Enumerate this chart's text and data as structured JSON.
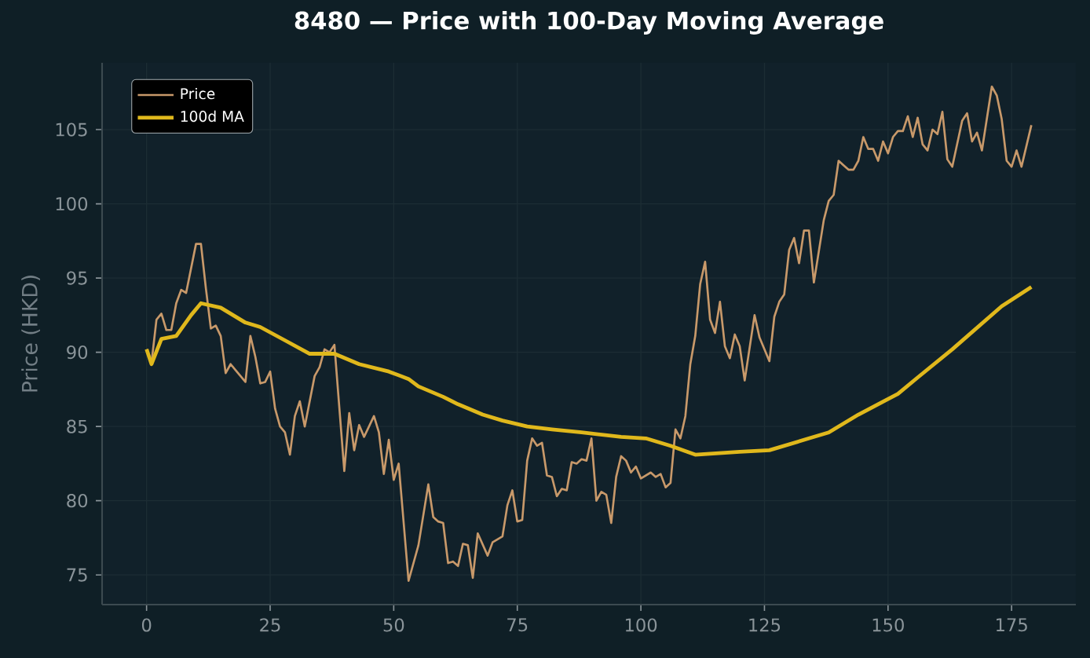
{
  "chart_data": {
    "type": "line",
    "title": "8480 — Price with 100-Day Moving Average",
    "ylabel": "Price (HKD)",
    "xlim": [
      -9,
      188
    ],
    "ylim": [
      73,
      109.5
    ],
    "xticks": [
      0,
      25,
      50,
      75,
      100,
      125,
      150,
      175
    ],
    "yticks": [
      75,
      80,
      85,
      90,
      95,
      100,
      105
    ],
    "grid": true,
    "legend": "top left",
    "series": [
      {
        "name": "Price",
        "color": "#c8996a",
        "x": [
          0,
          1,
          2,
          3,
          4,
          5,
          6,
          7,
          8,
          10,
          11,
          12,
          13,
          14,
          15,
          16,
          17,
          18,
          20,
          21,
          22,
          23,
          24,
          25,
          26,
          27,
          28,
          29,
          30,
          31,
          32,
          34,
          35,
          36,
          37,
          38,
          40,
          41,
          42,
          43,
          44,
          46,
          47,
          48,
          49,
          50,
          51,
          53,
          55,
          57,
          58,
          59,
          60,
          61,
          62,
          63,
          64,
          65,
          66,
          67,
          69,
          70,
          72,
          73,
          74,
          75,
          76,
          77,
          78,
          79,
          80,
          81,
          82,
          83,
          84,
          85,
          86,
          87,
          88,
          89,
          90,
          91,
          92,
          93,
          94,
          95,
          96,
          97,
          98,
          99,
          100,
          102,
          103,
          104,
          105,
          106,
          107,
          108,
          109,
          110,
          111,
          112,
          113,
          114,
          115,
          116,
          117,
          118,
          119,
          120,
          121,
          123,
          124,
          126,
          127,
          128,
          129,
          130,
          131,
          132,
          133,
          134,
          135,
          136,
          137,
          138,
          139,
          140,
          141,
          142,
          143,
          144,
          145,
          146,
          147,
          148,
          149,
          150,
          151,
          152,
          153,
          154,
          155,
          156,
          157,
          158,
          159,
          160,
          161,
          162,
          163,
          165,
          166,
          167,
          168,
          169,
          171,
          172,
          173,
          174,
          175,
          176,
          177,
          179
        ],
        "values": [
          90.2,
          89.3,
          92.2,
          92.6,
          91.5,
          91.5,
          93.3,
          94.2,
          94.0,
          97.3,
          97.3,
          94.3,
          91.6,
          91.8,
          91.1,
          88.6,
          89.2,
          88.8,
          88.0,
          91.1,
          89.7,
          87.9,
          88.0,
          88.7,
          86.2,
          85.0,
          84.6,
          83.1,
          85.7,
          86.7,
          85.0,
          88.4,
          89.0,
          90.2,
          90.0,
          90.5,
          82.0,
          85.9,
          83.4,
          85.1,
          84.3,
          85.7,
          84.6,
          81.8,
          84.1,
          81.4,
          82.5,
          74.6,
          77.0,
          81.1,
          78.9,
          78.6,
          78.5,
          75.8,
          75.9,
          75.6,
          77.1,
          77.0,
          74.8,
          77.8,
          76.3,
          77.2,
          77.6,
          79.7,
          80.7,
          78.6,
          78.7,
          82.7,
          84.2,
          83.7,
          83.9,
          81.7,
          81.6,
          80.3,
          80.8,
          80.7,
          82.6,
          82.5,
          82.8,
          82.7,
          84.2,
          80.0,
          80.6,
          80.4,
          78.5,
          81.6,
          83.0,
          82.7,
          81.9,
          82.3,
          81.5,
          81.9,
          81.6,
          81.8,
          80.9,
          81.2,
          84.8,
          84.2,
          85.7,
          89.2,
          91.1,
          94.6,
          96.1,
          92.2,
          91.3,
          93.4,
          90.4,
          89.6,
          91.2,
          90.4,
          88.1,
          92.5,
          91.0,
          89.4,
          92.4,
          93.4,
          93.9,
          96.9,
          97.7,
          96.0,
          98.2,
          98.2,
          94.7,
          96.8,
          98.9,
          100.2,
          100.6,
          102.9,
          102.6,
          102.3,
          102.3,
          102.9,
          104.5,
          103.7,
          103.7,
          102.9,
          104.2,
          103.4,
          104.5,
          104.9,
          104.9,
          105.9,
          104.5,
          105.8,
          104.0,
          103.6,
          105.0,
          104.7,
          106.2,
          103.0,
          102.5,
          105.6,
          106.1,
          104.2,
          104.8,
          103.6,
          107.9,
          107.3,
          105.7,
          102.9,
          102.5,
          103.6,
          102.5,
          105.3
        ]
      },
      {
        "name": "100d MA",
        "color": "#e0b81c",
        "x": [
          0,
          1,
          3,
          6,
          9,
          11,
          15,
          20,
          23,
          28,
          33,
          38,
          43,
          49,
          53,
          55,
          60,
          63,
          68,
          72,
          77,
          82,
          88,
          96,
          101,
          106,
          111,
          120,
          126,
          134,
          138,
          144,
          152,
          156,
          163,
          173,
          179
        ],
        "values": [
          90.2,
          89.2,
          90.9,
          91.1,
          92.5,
          93.3,
          93.0,
          92.0,
          91.7,
          90.8,
          89.9,
          89.9,
          89.2,
          88.7,
          88.2,
          87.7,
          87.0,
          86.5,
          85.8,
          85.4,
          85.0,
          84.8,
          84.6,
          84.3,
          84.2,
          83.7,
          83.1,
          83.3,
          83.4,
          84.2,
          84.6,
          85.8,
          87.2,
          88.3,
          90.2,
          93.1,
          94.4
        ]
      }
    ]
  }
}
